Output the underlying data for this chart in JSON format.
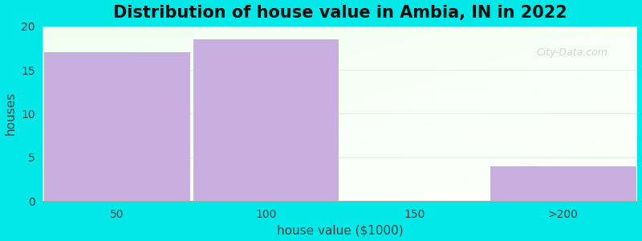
{
  "categories": [
    "50",
    "100",
    "150",
    ">200"
  ],
  "values": [
    17,
    18.5,
    0,
    4
  ],
  "bar_color": "#c9aee0",
  "bar_edge_color": "none",
  "title": "Distribution of house value in Ambia, IN in 2022",
  "xlabel": "house value ($1000)",
  "ylabel": "houses",
  "ylim": [
    0,
    20
  ],
  "yticks": [
    0,
    5,
    10,
    15,
    20
  ],
  "background_outer": "#00e8e8",
  "grid_color": "#ddf5dd",
  "title_fontsize": 15,
  "label_fontsize": 11,
  "tick_fontsize": 10,
  "watermark": "City-Data.com",
  "figsize": [
    8.0,
    3.0
  ],
  "dpi": 100
}
